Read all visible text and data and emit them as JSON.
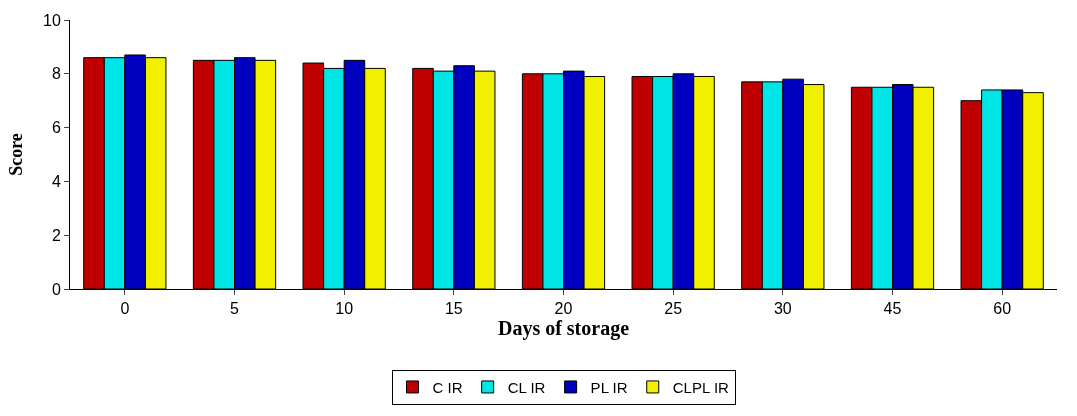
{
  "chart_data": {
    "type": "bar",
    "xlabel": "Days of storage",
    "ylabel": "Score",
    "categories": [
      "0",
      "5",
      "10",
      "15",
      "20",
      "25",
      "30",
      "45",
      "60"
    ],
    "series": [
      {
        "name": "C IR",
        "color": "#c00000",
        "values": [
          8.6,
          8.5,
          8.4,
          8.2,
          8.0,
          7.9,
          7.7,
          7.5,
          7.0
        ]
      },
      {
        "name": "CL IR",
        "color": "#00e5e5",
        "values": [
          8.6,
          8.5,
          8.2,
          8.1,
          8.0,
          7.9,
          7.7,
          7.5,
          7.4
        ]
      },
      {
        "name": "PL IR",
        "color": "#0000c0",
        "values": [
          8.7,
          8.6,
          8.5,
          8.3,
          8.1,
          8.0,
          7.8,
          7.6,
          7.4
        ]
      },
      {
        "name": "CLPL IR",
        "color": "#f0f000",
        "values": [
          8.6,
          8.5,
          8.2,
          8.1,
          7.9,
          7.9,
          7.6,
          7.5,
          7.3
        ]
      }
    ],
    "ylim": [
      0,
      10
    ],
    "yticks": [
      0,
      2,
      4,
      6,
      8,
      10
    ],
    "legend": "bottom"
  }
}
